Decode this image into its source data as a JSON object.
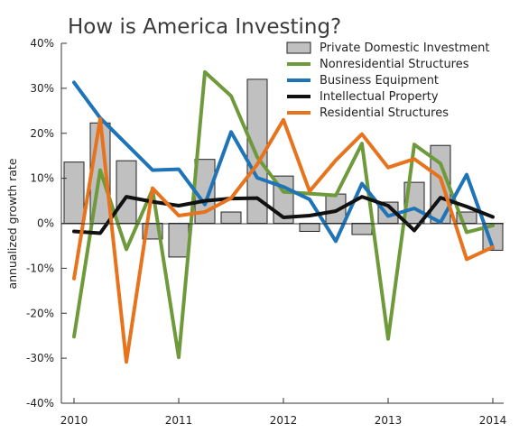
{
  "chart_data": {
    "type": "bar+line",
    "title": "How is America Investing?",
    "ylabel": "annualized growth rate",
    "xlabel": "",
    "ylim": [
      -40,
      40
    ],
    "yticks": [
      "40%",
      "30%",
      "20%",
      "10%",
      "0%",
      "-10%",
      "-20%",
      "-30%",
      "-40%"
    ],
    "xlim": [
      2010,
      2014
    ],
    "xticks": [
      "2010",
      "2011",
      "2012",
      "2013",
      "2014"
    ],
    "grid": false,
    "legend_position": "top-right",
    "quarters": [
      "2010 Q1",
      "2010 Q2",
      "2010 Q3",
      "2010 Q4",
      "2011 Q1",
      "2011 Q2",
      "2011 Q3",
      "2011 Q4",
      "2012 Q1",
      "2012 Q2",
      "2012 Q3",
      "2012 Q4",
      "2013 Q1",
      "2013 Q2",
      "2013 Q3",
      "2013 Q4",
      "2014 Q1"
    ],
    "bars": {
      "name": "Private Domestic Investment",
      "color": "#c0c0c0",
      "values": [
        13.6,
        22.3,
        13.9,
        -3.5,
        -7.5,
        14.2,
        2.5,
        32.0,
        10.5,
        -1.8,
        6.5,
        -2.5,
        4.7,
        9.1,
        17.3,
        2.5,
        -6.0
      ]
    },
    "series": [
      {
        "name": "Nonresidential Structures",
        "color": "#6f9a3c",
        "values": [
          -25.2,
          11.8,
          -5.8,
          7.5,
          -29.8,
          33.6,
          28.3,
          14.7,
          7.0,
          6.6,
          6.2,
          17.7,
          -25.7,
          17.5,
          13.3,
          -2.0,
          -0.5
        ]
      },
      {
        "name": "Business Equipment",
        "color": "#1f73b7",
        "values": [
          31.3,
          23.4,
          17.6,
          11.8,
          12.0,
          4.2,
          20.3,
          10.1,
          8.1,
          5.3,
          -4.0,
          8.8,
          1.6,
          3.3,
          0.2,
          10.8,
          -5.5
        ]
      },
      {
        "name": "Intellectual Property",
        "color": "#111111",
        "values": [
          -1.8,
          -2.2,
          5.9,
          4.8,
          3.9,
          5.0,
          5.5,
          5.6,
          1.3,
          1.7,
          2.7,
          5.9,
          3.9,
          -1.6,
          5.7,
          3.7,
          1.4
        ]
      },
      {
        "name": "Residential Structures",
        "color": "#e8731d",
        "values": [
          -12.3,
          23.2,
          -30.8,
          7.8,
          1.7,
          2.5,
          5.6,
          13.1,
          23.0,
          7.1,
          14.0,
          19.8,
          12.4,
          14.3,
          10.1,
          -8.0,
          -5.3
        ]
      }
    ]
  }
}
